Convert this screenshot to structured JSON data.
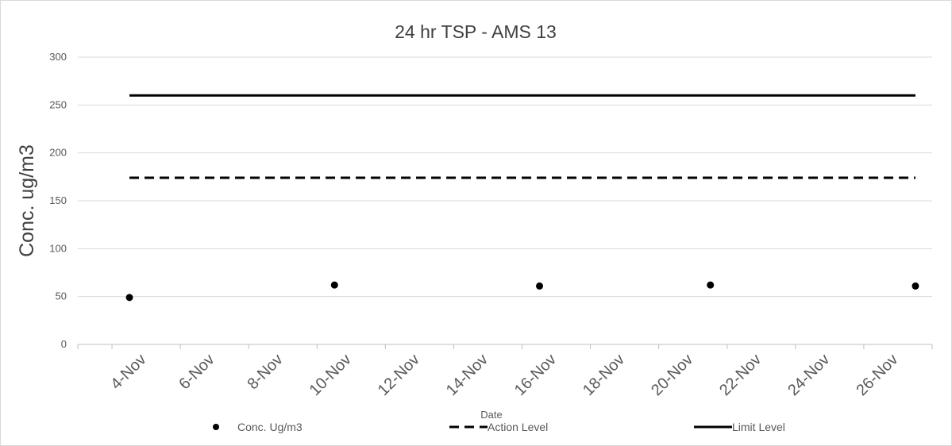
{
  "chart_data": {
    "type": "line",
    "title": "24 hr TSP - AMS 13",
    "xlabel": "Date",
    "ylabel": "Conc. ug/m3",
    "x_range": [
      "3-Nov",
      "28-Nov"
    ],
    "ylim": [
      0,
      300
    ],
    "y_ticks": [
      0,
      50,
      100,
      150,
      200,
      250,
      300
    ],
    "x_tick_labels": [
      "4-Nov",
      "6-Nov",
      "8-Nov",
      "10-Nov",
      "12-Nov",
      "14-Nov",
      "16-Nov",
      "18-Nov",
      "20-Nov",
      "22-Nov",
      "24-Nov",
      "26-Nov"
    ],
    "grid": "horizontal",
    "legend_position": "bottom",
    "series": [
      {
        "name": "Conc. Ug/m3",
        "style": "scatter",
        "color": "#000000",
        "points": [
          {
            "x": "4-Nov",
            "y": 49
          },
          {
            "x": "10-Nov",
            "y": 62
          },
          {
            "x": "16-Nov",
            "y": 61
          },
          {
            "x": "21-Nov",
            "y": 62
          },
          {
            "x": "27-Nov",
            "y": 61
          }
        ]
      },
      {
        "name": "Action Level",
        "style": "dashed-line",
        "color": "#000000",
        "points": [
          {
            "x": "4-Nov",
            "y": 174
          },
          {
            "x": "27-Nov",
            "y": 174
          }
        ]
      },
      {
        "name": "Limit Level",
        "style": "solid-line",
        "color": "#000000",
        "points": [
          {
            "x": "4-Nov",
            "y": 260
          },
          {
            "x": "27-Nov",
            "y": 260
          }
        ]
      }
    ]
  }
}
